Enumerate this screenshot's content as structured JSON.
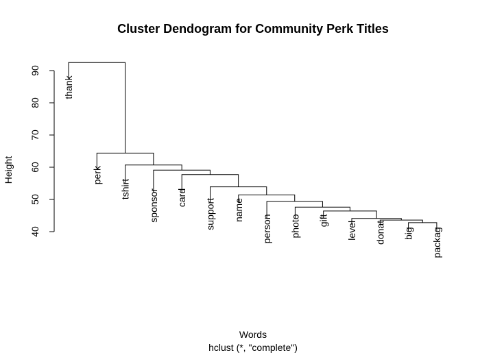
{
  "chart_data": {
    "type": "dendrogram",
    "title": "Cluster Dendogram for Community Perk Titles",
    "xlabel": "Words",
    "sub": "hclust (*, \"complete\")",
    "ylabel": "Height",
    "ylim": [
      40,
      95
    ],
    "yticks": [
      40,
      50,
      60,
      70,
      80,
      90
    ],
    "leaves": [
      "thank",
      "perk",
      "tshirt",
      "sponsor",
      "card",
      "support",
      "name",
      "person",
      "photo",
      "gift",
      "level",
      "donat",
      "big",
      "packag"
    ],
    "merges": [
      {
        "left": 12,
        "right": 13,
        "height": 42.8
      },
      {
        "left": 11,
        "right": "m1",
        "height": 43.6
      },
      {
        "left": 10,
        "right": "m2",
        "height": 44.1
      },
      {
        "left": 9,
        "right": "m3",
        "height": 46.4
      },
      {
        "left": 8,
        "right": "m4",
        "height": 47.6
      },
      {
        "left": 7,
        "right": "m5",
        "height": 49.4
      },
      {
        "left": 6,
        "right": "m6",
        "height": 51.4
      },
      {
        "left": 5,
        "right": "m7",
        "height": 53.9
      },
      {
        "left": 4,
        "right": "m8",
        "height": 57.7
      },
      {
        "left": 3,
        "right": "m9",
        "height": 59.1
      },
      {
        "left": 2,
        "right": "m10",
        "height": 60.7
      },
      {
        "left": 1,
        "right": "m11",
        "height": 64.4
      },
      {
        "left": 0,
        "right": "m12",
        "height": 92.5
      }
    ],
    "label_height": {
      "thank": 88,
      "perk": 60,
      "tshirt": 56,
      "sponsor": 53,
      "card": 53,
      "support": 50,
      "name": 50,
      "person": 45,
      "photo": 45,
      "gift": 45,
      "level": 43,
      "donat": 43,
      "big": 41,
      "packag": 41
    }
  }
}
